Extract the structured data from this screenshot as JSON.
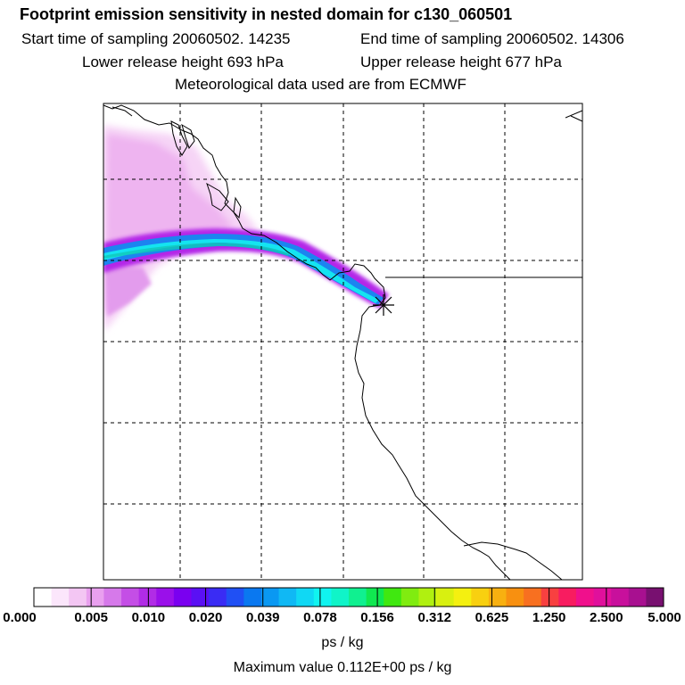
{
  "header": {
    "title": "Footprint emission sensitivity in nested domain for c130_060501",
    "start_time": "Start time of sampling 20060502. 14235",
    "end_time": "End time of sampling 20060502. 14306",
    "lower_release": "Lower release height  693 hPa",
    "upper_release": "Upper release height  677 hPa",
    "met_data": "Meteorological data used are from ECMWF"
  },
  "legend": {
    "tick_labels": [
      "0.000",
      "0.005",
      "0.010",
      "0.020",
      "0.039",
      "0.078",
      "0.156",
      "0.312",
      "0.625",
      "1.250",
      "2.500",
      "5.000"
    ],
    "units": "ps / kg",
    "max_value": "Maximum value  0.112E+00 ps / kg",
    "colors": [
      "#ffffff",
      "#fbe6fb",
      "#f3c6f3",
      "#e9a0ef",
      "#d679ea",
      "#c44ee6",
      "#b12ce6",
      "#9a10ea",
      "#7a00f0",
      "#5a10f4",
      "#3a2cf4",
      "#2050f4",
      "#0a78f0",
      "#0a98f2",
      "#10b8f4",
      "#10d8f4",
      "#10f4f0",
      "#10f4c8",
      "#10f090",
      "#10e850",
      "#40e810",
      "#80ec10",
      "#b0f010",
      "#d8f010",
      "#f4f010",
      "#f8d010",
      "#f8b010",
      "#f89010",
      "#f87020",
      "#f84040",
      "#f81c60",
      "#f0108c",
      "#e0109c",
      "#c8109c",
      "#a81090",
      "#781070"
    ]
  },
  "map": {
    "marker_icon": "asterisk-release-site"
  }
}
